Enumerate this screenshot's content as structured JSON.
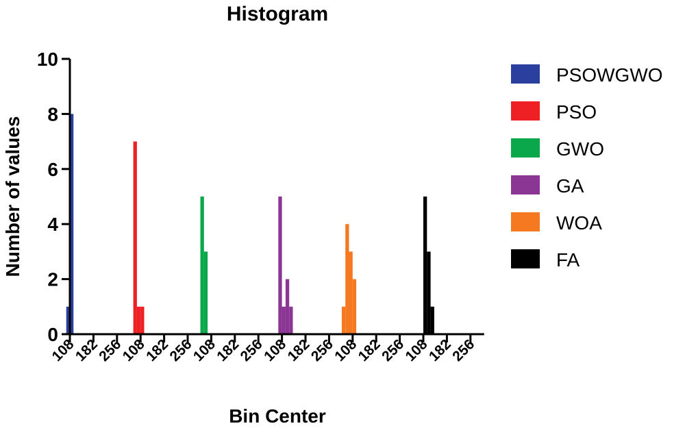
{
  "chart_data": {
    "type": "bar",
    "title": "Histogram",
    "xlabel": "Bin Center",
    "ylabel": "Number of values",
    "ylim": [
      0,
      10
    ],
    "yticks": [
      0,
      2,
      4,
      6,
      8,
      10
    ],
    "xtick_labels": [
      "108",
      "182",
      "256",
      "108",
      "182",
      "256",
      "108",
      "182",
      "256",
      "108",
      "182",
      "256",
      "108",
      "182",
      "256",
      "108",
      "182",
      "256"
    ],
    "grid": false,
    "legend_position": "right",
    "series": [
      {
        "name": "PSOWGWO",
        "color": "#2b3f9e",
        "values": [
          1,
          8
        ]
      },
      {
        "name": "PSO",
        "color": "#ee2024",
        "values": [
          7,
          1,
          1
        ]
      },
      {
        "name": "GWO",
        "color": "#0aa74b",
        "values": [
          5,
          3
        ]
      },
      {
        "name": "GA",
        "color": "#8b3594",
        "values": [
          5,
          1,
          2,
          1
        ]
      },
      {
        "name": "WOA",
        "color": "#f47920",
        "values": [
          1,
          4,
          3,
          2
        ]
      },
      {
        "name": "FA",
        "color": "#000000",
        "values": [
          5,
          3,
          1
        ]
      }
    ]
  }
}
